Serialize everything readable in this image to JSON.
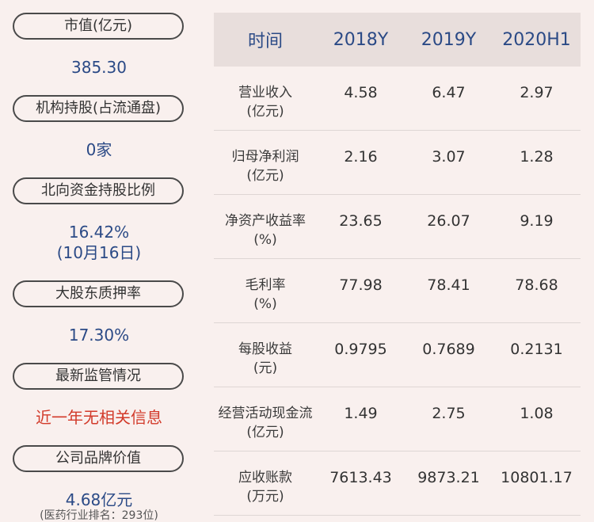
{
  "left": {
    "market_cap_label": "市值(亿元)",
    "market_cap_value": "385.30",
    "institution_label": "机构持股(占流通盘)",
    "institution_value": "0家",
    "northbound_label": "北向资金持股比例",
    "northbound_value": "16.42%",
    "northbound_date": "(10月16日)",
    "pledge_label": "大股东质押率",
    "pledge_value": "17.30%",
    "regulation_label": "最新监管情况",
    "regulation_value": "近一年无相关信息",
    "brand_label": "公司品牌价值",
    "brand_value": "4.68亿元",
    "brand_rank": "(医药行业排名：293位)"
  },
  "table": {
    "headers": [
      "时间",
      "2018Y",
      "2019Y",
      "2020H1"
    ],
    "rows": [
      {
        "label": "营业收入",
        "unit": "(亿元)",
        "values": [
          "4.58",
          "6.47",
          "2.97"
        ]
      },
      {
        "label": "归母净利润",
        "unit": "(亿元)",
        "values": [
          "2.16",
          "3.07",
          "1.28"
        ]
      },
      {
        "label": "净资产收益率",
        "unit": "(%)",
        "values": [
          "23.65",
          "26.07",
          "9.19"
        ]
      },
      {
        "label": "毛利率",
        "unit": "(%)",
        "values": [
          "77.98",
          "78.41",
          "78.68"
        ]
      },
      {
        "label": "每股收益",
        "unit": "(元)",
        "values": [
          "0.9795",
          "0.7689",
          "0.2131"
        ]
      },
      {
        "label": "经营活动现金流",
        "unit": "(亿元)",
        "values": [
          "1.49",
          "2.75",
          "1.08"
        ]
      },
      {
        "label": "应收账款",
        "unit": "(万元)",
        "values": [
          "7613.43",
          "9873.21",
          "10801.17"
        ]
      }
    ]
  },
  "colors": {
    "background": "#f9f0ee",
    "value_blue": "#2b4a86",
    "alert_red": "#d23a2a",
    "header_bg": "#e8dedc"
  }
}
